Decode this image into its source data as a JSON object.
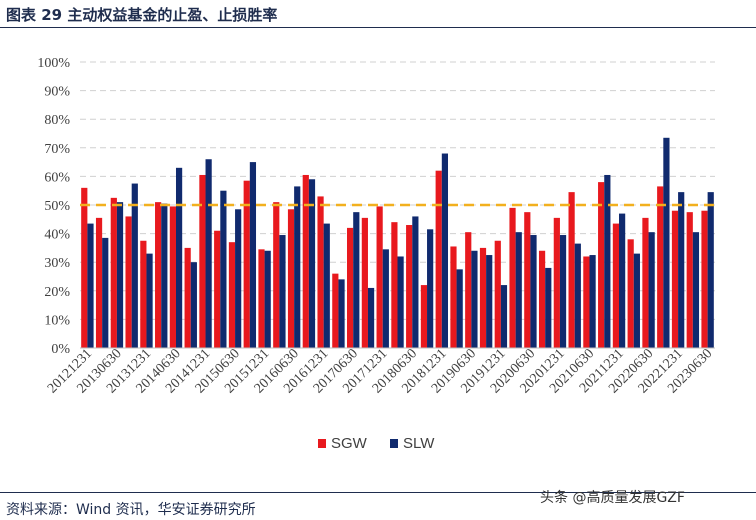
{
  "header": {
    "title": "图表 29  主动权益基金的止盈、止损胜率"
  },
  "footer": {
    "source": "资料来源：Wind 资讯，华安证券研究所",
    "watermark": "头条 @高质量发展GZF"
  },
  "chart_data": {
    "type": "bar",
    "title": "",
    "xlabel": "",
    "ylabel": "",
    "ylim": [
      0,
      100
    ],
    "y_ticks": [
      "0%",
      "10%",
      "20%",
      "30%",
      "40%",
      "50%",
      "60%",
      "70%",
      "80%",
      "90%",
      "100%"
    ],
    "grid": "horizontal dashed",
    "legend_position": "bottom",
    "reference_line": {
      "value": 50,
      "style": "dashed",
      "color": "#f2b01e"
    },
    "categories": [
      "20121231",
      "20130331",
      "20130630",
      "20130930",
      "20131231",
      "20140331",
      "20140630",
      "20140930",
      "20141231",
      "20150331",
      "20150630",
      "20150930",
      "20151231",
      "20160331",
      "20160630",
      "20160930",
      "20161231",
      "20170331",
      "20170630",
      "20170930",
      "20171231",
      "20180331",
      "20180630",
      "20180930",
      "20181231",
      "20190331",
      "20190630",
      "20190930",
      "20191231",
      "20200331",
      "20200630",
      "20200930",
      "20201231",
      "20210331",
      "20210630",
      "20210930",
      "20211231",
      "20220331",
      "20220630",
      "20220930",
      "20221231",
      "20230331",
      "20230630"
    ],
    "x_tick_labels": [
      "20121231",
      "",
      "20130630",
      "",
      "20131231",
      "",
      "20140630",
      "",
      "20141231",
      "",
      "20150630",
      "",
      "20151231",
      "",
      "20160630",
      "",
      "20161231",
      "",
      "20170630",
      "",
      "20171231",
      "",
      "20180630",
      "",
      "20181231",
      "",
      "20190630",
      "",
      "20191231",
      "",
      "20200630",
      "",
      "20201231",
      "",
      "20210630",
      "",
      "20211231",
      "",
      "20220630",
      "",
      "20221231",
      "",
      "20230630"
    ],
    "series": [
      {
        "name": "SGW",
        "color": "#e8191e",
        "values": [
          56,
          45.5,
          52.5,
          46,
          37.5,
          51,
          49.5,
          35,
          60.5,
          41,
          37,
          58.5,
          34.5,
          51,
          48.5,
          60.5,
          53,
          26,
          42,
          45.5,
          49.5,
          44,
          43,
          22,
          62,
          35.5,
          40.5,
          35,
          37.5,
          49,
          47.5,
          34,
          45.5,
          54.5,
          32,
          58,
          43.5,
          38,
          45.5,
          56.5,
          48,
          47.5,
          48
        ]
      },
      {
        "name": "SLW",
        "color": "#102a6e",
        "values": [
          43.5,
          38.5,
          51,
          57.5,
          33,
          50.5,
          63,
          30,
          66,
          55,
          48.5,
          65,
          34,
          39.5,
          56.5,
          59,
          43.5,
          24,
          47.5,
          21,
          34.5,
          32,
          46,
          41.5,
          68,
          27.5,
          34,
          32.5,
          22,
          40.5,
          39.5,
          28,
          39.5,
          36.5,
          32.5,
          60.5,
          47,
          33,
          40.5,
          73.5,
          54.5,
          40.5,
          54.5
        ]
      }
    ]
  }
}
